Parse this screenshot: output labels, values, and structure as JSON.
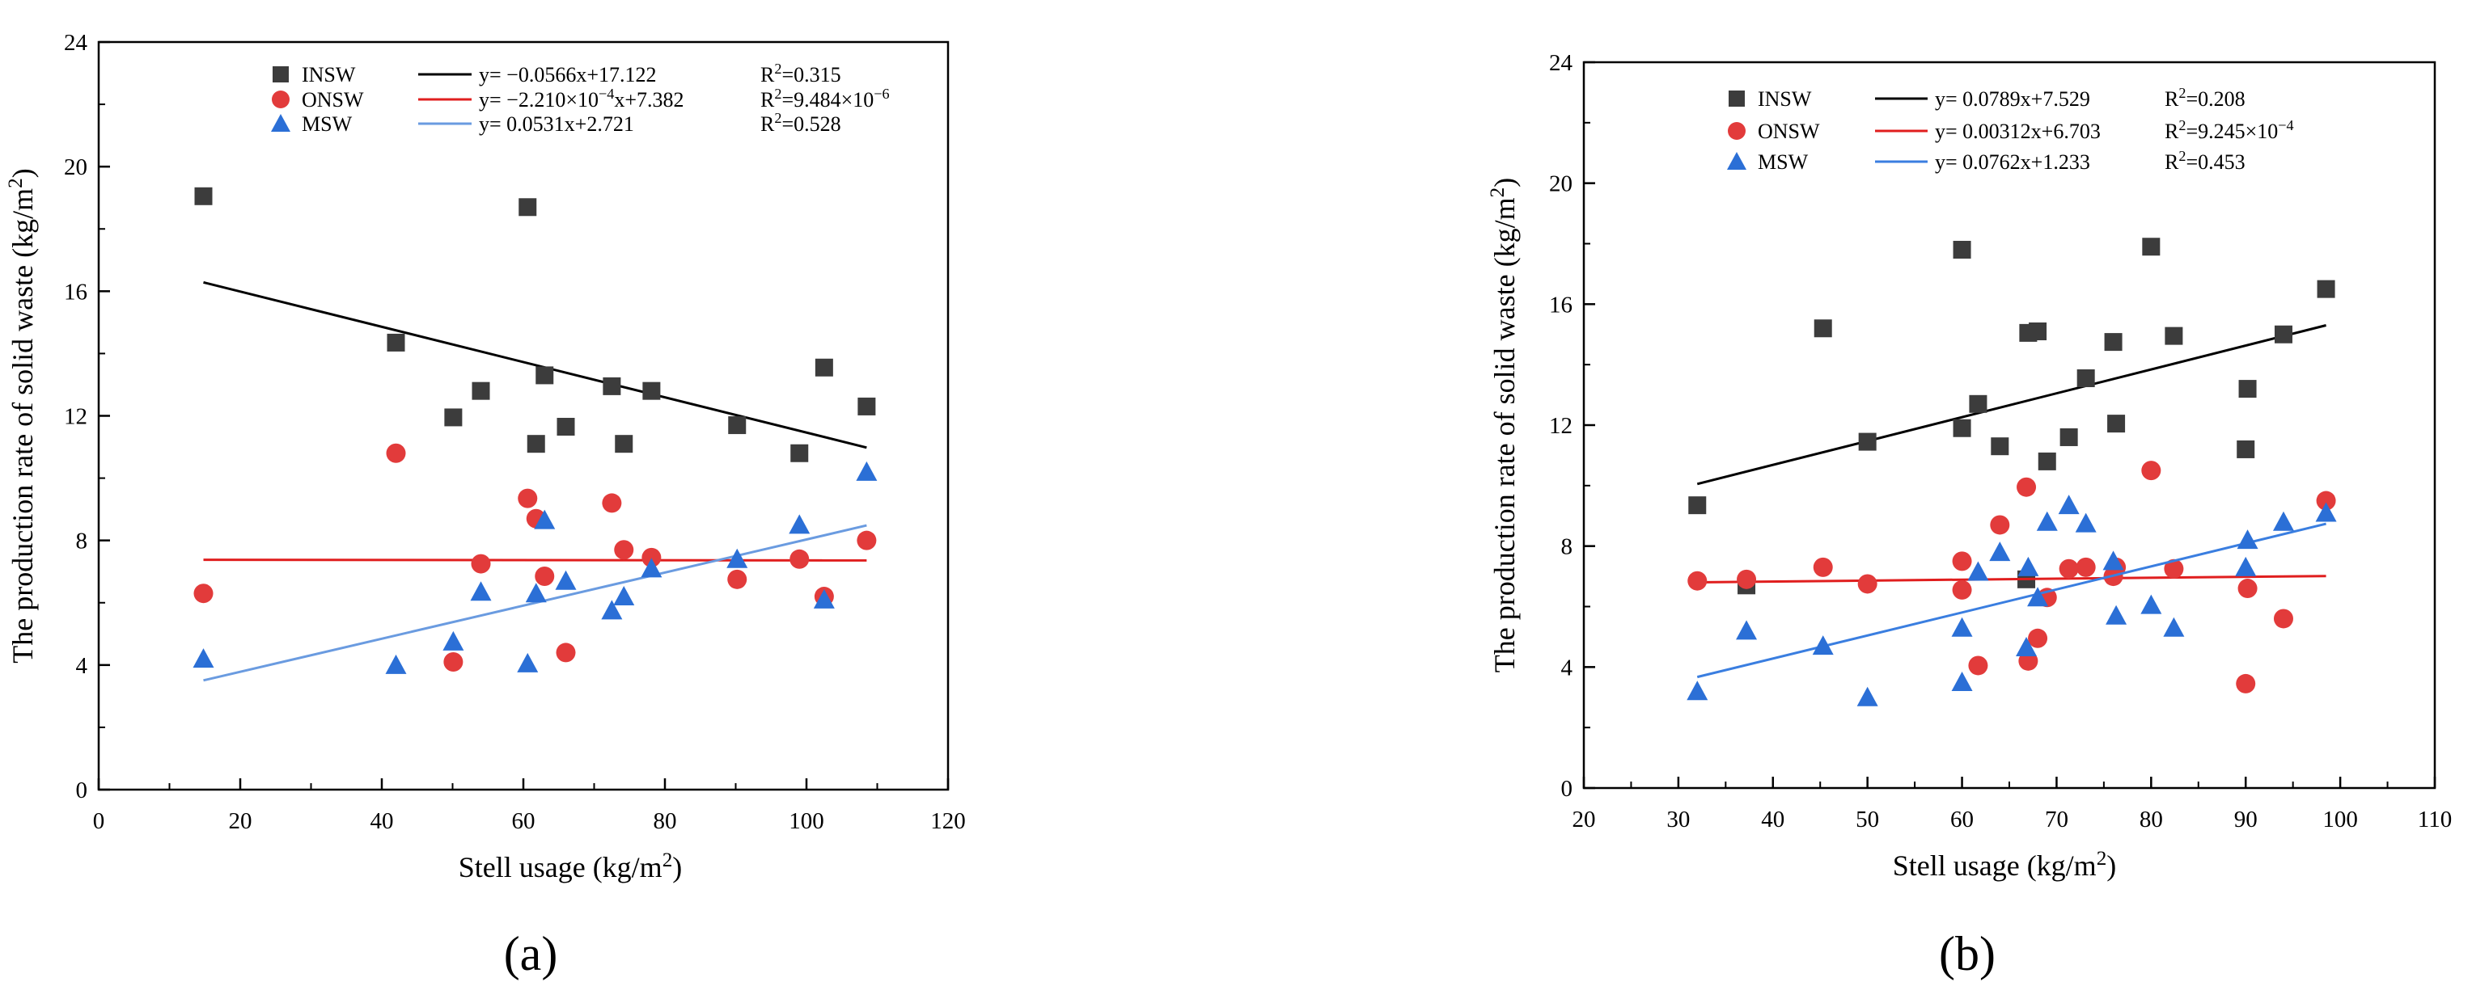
{
  "chart_data": [
    {
      "type": "scatter",
      "panel": "a",
      "panel_label": "(a)",
      "xlabel": "Stell usage (kg/m²)",
      "ylabel": "The production rate of solid waste (kg/m²)",
      "xlim": [
        0,
        120
      ],
      "ylim": [
        0,
        24
      ],
      "xticks": [
        0,
        20,
        40,
        60,
        80,
        100,
        120
      ],
      "yticks": [
        0,
        4,
        8,
        12,
        16,
        20,
        24
      ],
      "legend_position": "top-left",
      "series": [
        {
          "name": "INSW",
          "marker": "square",
          "color": "#3c3c3c",
          "line_color": "#000000",
          "equation": "y= −0.0566x+17.122",
          "r2": "R²=0.315",
          "fit": {
            "slope": -0.0566,
            "intercept": 17.122,
            "x_range": [
              14.8,
              108.5
            ]
          },
          "x": [
            14.8,
            42.0,
            50.1,
            54.0,
            60.6,
            61.8,
            63.0,
            66.0,
            72.5,
            74.2,
            78.1,
            90.2,
            99.0,
            102.5,
            108.5
          ],
          "y": [
            19.05,
            14.35,
            11.95,
            12.8,
            18.7,
            11.1,
            13.3,
            11.65,
            12.95,
            11.1,
            12.8,
            11.7,
            10.8,
            13.55,
            12.3
          ]
        },
        {
          "name": "ONSW",
          "marker": "circle",
          "color": "#e23b3b",
          "line_color": "#e01e1e",
          "equation": "y= −2.210×10⁻⁴x+7.382",
          "r2": "R²=9.484×10⁻⁶",
          "fit": {
            "slope": -0.000221,
            "intercept": 7.382,
            "x_range": [
              14.8,
              108.5
            ]
          },
          "x": [
            14.8,
            42.0,
            50.1,
            54.0,
            60.6,
            61.8,
            63.0,
            66.0,
            72.5,
            74.2,
            78.1,
            90.2,
            99.0,
            102.5,
            108.5
          ],
          "y": [
            6.3,
            10.8,
            4.1,
            7.25,
            9.35,
            8.7,
            6.85,
            4.4,
            9.2,
            7.7,
            7.45,
            6.75,
            7.4,
            6.2,
            8.0
          ]
        },
        {
          "name": "MSW",
          "marker": "triangle",
          "color": "#2b6fd6",
          "line_color": "#6a9be0",
          "equation": "y= 0.0531x+2.721",
          "r2": "R²=0.528",
          "fit": {
            "slope": 0.0531,
            "intercept": 2.721,
            "x_range": [
              14.8,
              108.5
            ]
          },
          "x": [
            14.8,
            42.0,
            50.1,
            54.0,
            60.6,
            61.8,
            63.0,
            66.0,
            72.5,
            74.2,
            78.1,
            90.2,
            99.0,
            102.5,
            108.5
          ],
          "y": [
            4.2,
            4.0,
            4.75,
            6.35,
            4.05,
            6.3,
            8.65,
            6.7,
            5.75,
            6.2,
            7.1,
            7.4,
            8.5,
            6.1,
            10.2
          ]
        }
      ]
    },
    {
      "type": "scatter",
      "panel": "b",
      "panel_label": "(b)",
      "xlabel": "Stell usage (kg/m²)",
      "ylabel": "The production rate of solid waste (kg/m²)",
      "xlim": [
        20,
        110
      ],
      "ylim": [
        0,
        24
      ],
      "xticks": [
        20,
        30,
        40,
        50,
        60,
        70,
        80,
        90,
        100,
        110
      ],
      "yticks": [
        0,
        4,
        8,
        12,
        16,
        20,
        24
      ],
      "legend_position": "top-left",
      "series": [
        {
          "name": "INSW",
          "marker": "square",
          "color": "#3c3c3c",
          "line_color": "#000000",
          "equation": "y= 0.0789x+7.529",
          "r2": "R²=0.208",
          "fit": {
            "slope": 0.0789,
            "intercept": 7.529,
            "x_range": [
              32,
              98.5
            ]
          },
          "x": [
            32,
            37.2,
            45.3,
            50,
            60,
            60,
            61.7,
            64,
            66.8,
            67,
            68,
            69,
            71.3,
            73.1,
            76,
            76.3,
            80,
            82.4,
            90,
            90.2,
            94,
            98.5
          ],
          "y": [
            9.35,
            6.7,
            15.2,
            11.45,
            17.8,
            11.9,
            12.7,
            11.3,
            6.9,
            15.05,
            15.1,
            10.8,
            11.6,
            13.55,
            14.75,
            12.05,
            17.9,
            14.95,
            11.2,
            13.2,
            15.0,
            16.5
          ]
        },
        {
          "name": "ONSW",
          "marker": "circle",
          "color": "#e23b3b",
          "line_color": "#e01e1e",
          "equation": "y= 0.00312x+6.703",
          "r2": "R²=9.245×10⁻⁴",
          "fit": {
            "slope": 0.00312,
            "intercept": 6.703,
            "x_range": [
              32,
              98.5
            ]
          },
          "x": [
            32,
            37.2,
            45.3,
            50,
            60,
            60,
            61.7,
            64,
            66.8,
            67,
            68,
            69,
            71.3,
            73.1,
            76,
            76.3,
            80,
            82.4,
            90,
            90.2,
            94,
            98.5
          ],
          "y": [
            6.85,
            6.9,
            7.3,
            6.75,
            7.5,
            6.55,
            4.05,
            8.7,
            9.95,
            4.2,
            4.95,
            6.3,
            7.25,
            7.3,
            7.0,
            7.3,
            10.5,
            7.25,
            3.45,
            6.6,
            5.6,
            9.5
          ]
        },
        {
          "name": "MSW",
          "marker": "triangle",
          "color": "#2b6fd6",
          "line_color": "#3a7ee0",
          "equation": "y= 0.0762x+1.233",
          "r2": "R²=0.453",
          "fit": {
            "slope": 0.0762,
            "intercept": 1.233,
            "x_range": [
              32,
              98.5
            ]
          },
          "x": [
            32,
            37.2,
            45.3,
            50,
            60,
            60,
            61.7,
            64,
            66.8,
            67,
            68,
            69,
            71.3,
            73.1,
            76,
            76.3,
            80,
            82.4,
            90,
            90.2,
            94,
            98.5
          ],
          "y": [
            3.2,
            5.2,
            4.7,
            3.0,
            3.5,
            5.3,
            7.15,
            7.8,
            4.65,
            7.3,
            6.3,
            8.8,
            9.35,
            8.75,
            7.5,
            5.7,
            6.05,
            5.3,
            7.3,
            8.2,
            8.8,
            9.1
          ]
        }
      ]
    }
  ]
}
